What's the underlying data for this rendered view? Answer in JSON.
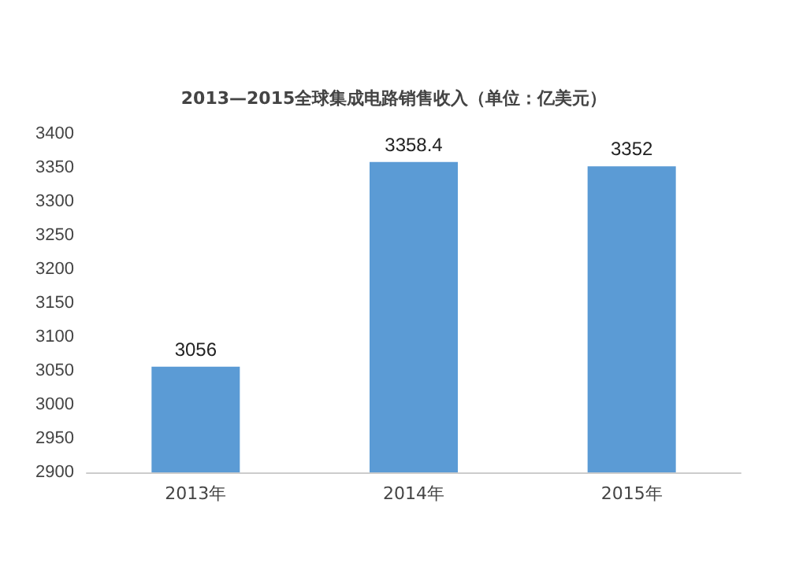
{
  "chart_data": {
    "type": "bar",
    "title": "2013—2015全球集成电路销售收入（单位：亿美元）",
    "categories": [
      "2013年",
      "2014年",
      "2015年"
    ],
    "values": [
      3056,
      3358.4,
      3352
    ],
    "color": "#5b9bd5",
    "ylim": [
      2900,
      3400
    ],
    "yticks": [
      2900,
      2950,
      3000,
      3050,
      3100,
      3150,
      3200,
      3250,
      3300,
      3350,
      3400
    ],
    "data_labels": true
  }
}
